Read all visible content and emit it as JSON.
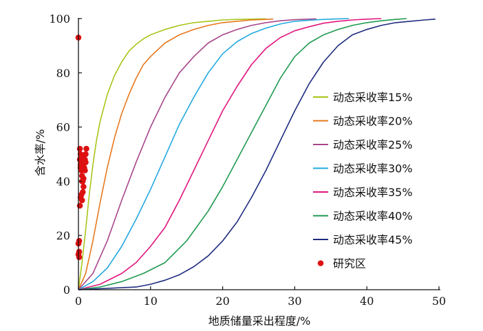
{
  "chart_data": {
    "type": "line",
    "xlabel": "地质储量采出程度/%",
    "ylabel": "含水率/%",
    "xlim": [
      0,
      50
    ],
    "ylim": [
      0,
      100
    ],
    "xticks": [
      "0",
      "10",
      "20",
      "30",
      "40",
      "50"
    ],
    "yticks": [
      "0",
      "20",
      "40",
      "60",
      "80",
      "100"
    ],
    "grid": false,
    "legend_position": "right",
    "series": [
      {
        "name": "动态采收率15%",
        "color": "#a8c418",
        "x": [
          0,
          0.5,
          1,
          1.5,
          2,
          2.5,
          3,
          4,
          5,
          6,
          7,
          8,
          9,
          10,
          12,
          14,
          16,
          18,
          20,
          22,
          24,
          26
        ],
        "y": [
          0,
          10,
          22,
          35,
          46,
          55,
          62,
          72,
          79,
          84,
          88,
          90.5,
          92.5,
          94,
          96,
          97.5,
          98.5,
          99,
          99.5,
          99.7,
          99.8,
          99.9
        ]
      },
      {
        "name": "动态采收率20%",
        "color": "#e6781e",
        "x": [
          0,
          1,
          2,
          3,
          4,
          5,
          6,
          7,
          8,
          9,
          10,
          12,
          14,
          16,
          18,
          20,
          22,
          24,
          26,
          27
        ],
        "y": [
          0,
          6,
          18,
          32,
          45,
          56,
          65,
          72,
          78,
          83,
          86,
          91,
          94,
          96,
          97.5,
          98.5,
          99,
          99.5,
          99.7,
          99.8
        ]
      },
      {
        "name": "动态采收率25%",
        "color": "#a8458a",
        "x": [
          0,
          2,
          4,
          6,
          8,
          10,
          12,
          14,
          16,
          18,
          20,
          22,
          24,
          26,
          28,
          30,
          32,
          33
        ],
        "y": [
          0,
          6,
          18,
          33,
          47,
          60,
          71,
          80,
          86,
          91,
          94,
          96,
          97.5,
          98.5,
          99.2,
          99.6,
          99.8,
          99.9
        ]
      },
      {
        "name": "动态采收率30%",
        "color": "#22a8e0",
        "x": [
          0,
          2,
          4,
          6,
          8,
          10,
          12,
          14,
          16,
          18,
          20,
          22,
          24,
          26,
          28,
          30,
          32,
          34,
          36,
          37.5
        ],
        "y": [
          0,
          3,
          8,
          16,
          26,
          37,
          49,
          61,
          71,
          80,
          87,
          91.5,
          94.5,
          96.5,
          98,
          99,
          99.4,
          99.7,
          99.9,
          100
        ]
      },
      {
        "name": "动态采收率35%",
        "color": "#e0157e",
        "x": [
          0,
          3,
          6,
          8,
          10,
          12,
          14,
          16,
          18,
          20,
          22,
          24,
          26,
          28,
          30,
          32,
          34,
          36,
          38,
          40,
          42
        ],
        "y": [
          0,
          2,
          6,
          10,
          16,
          23,
          33,
          44,
          55,
          66,
          75,
          83,
          89,
          93,
          95.5,
          97,
          98.3,
          99,
          99.5,
          99.8,
          100
        ]
      },
      {
        "name": "动态采收率40%",
        "color": "#1e9950",
        "x": [
          0,
          3,
          6,
          9,
          12,
          15,
          18,
          20,
          22,
          24,
          26,
          28,
          30,
          32,
          34,
          36,
          38,
          40,
          42,
          44,
          45.5
        ],
        "y": [
          0,
          1,
          3,
          6,
          10,
          18,
          29,
          38,
          48,
          58,
          68,
          78,
          86,
          91,
          94,
          96,
          97.5,
          98.5,
          99.2,
          99.7,
          100
        ]
      },
      {
        "name": "动态采收率45%",
        "color": "#1c2a7e",
        "x": [
          0,
          4,
          8,
          10,
          12,
          14,
          16,
          18,
          20,
          22,
          24,
          26,
          28,
          30,
          32,
          34,
          36,
          38,
          40,
          42,
          44,
          46,
          48,
          49.5
        ],
        "y": [
          0,
          0.5,
          1,
          2,
          3.5,
          5.5,
          8.5,
          12.5,
          18,
          25,
          34,
          44,
          55,
          66,
          76,
          84,
          90,
          94,
          96,
          97.5,
          98.5,
          99,
          99.5,
          99.8
        ]
      }
    ],
    "scatter": {
      "name": "研究区",
      "color": "#dd1111",
      "x": [
        0.0,
        0.2,
        0.3,
        0.2,
        0.3,
        0.4,
        0.5,
        0.3,
        0.4,
        0.6,
        0.7,
        0.5,
        0.6,
        0.8,
        0.9,
        1.0,
        0.7,
        0.9,
        1.0,
        1.1,
        0.6,
        0.4,
        0.5,
        0.7,
        0.3,
        0.5,
        0.2,
        0.1,
        0.1,
        0.0,
        0.1,
        0.0
      ],
      "y": [
        93,
        52,
        50,
        48,
        46,
        47,
        49,
        45,
        44,
        46,
        47,
        42,
        40,
        45,
        48,
        50,
        38,
        44,
        47,
        52,
        36,
        35,
        40,
        41,
        34,
        33,
        31,
        18,
        14,
        13,
        12,
        17
      ]
    }
  }
}
